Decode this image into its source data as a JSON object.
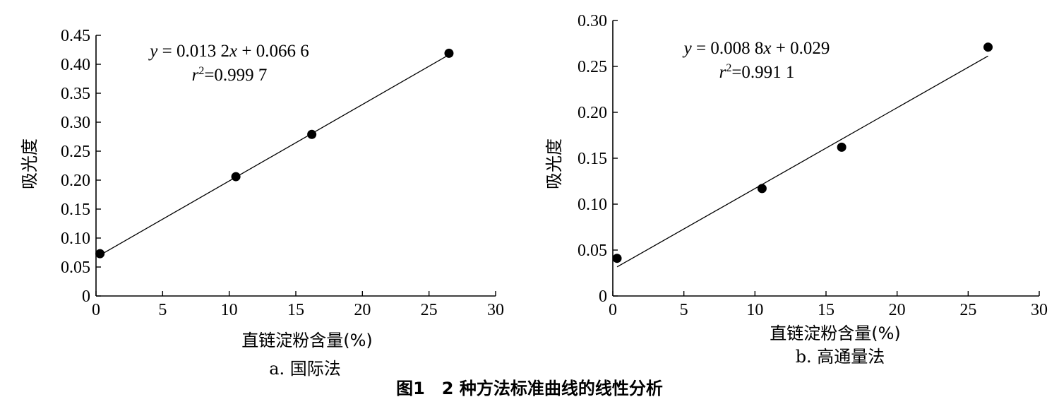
{
  "figure_caption": "图1　2 种方法标准曲线的线性分析",
  "chart_data": [
    {
      "type": "scatter",
      "subtitle": "a. 国际法",
      "xlabel": "直链淀粉含量(%)",
      "ylabel": "吸光度",
      "xlim": [
        0,
        30
      ],
      "ylim": [
        0,
        0.45
      ],
      "x_ticks": [
        "0",
        "5",
        "10",
        "15",
        "20",
        "25",
        "30"
      ],
      "y_ticks": [
        "0",
        "0.05",
        "0.10",
        "0.15",
        "0.20",
        "0.25",
        "0.30",
        "0.35",
        "0.40",
        "0.45"
      ],
      "points": [
        {
          "x": 0.3,
          "y": 0.073
        },
        {
          "x": 10.5,
          "y": 0.206
        },
        {
          "x": 16.2,
          "y": 0.279
        },
        {
          "x": 26.5,
          "y": 0.419
        }
      ],
      "fit": {
        "slope": 0.0132,
        "intercept": 0.0666,
        "x_range": [
          0.3,
          26.5
        ]
      },
      "equation": {
        "lhs": "y",
        "rhs_a": " = 0.013 2",
        "var": "x",
        "rhs_b": " + 0.066 6"
      },
      "r2": {
        "sym": "r",
        "exp": "2",
        "value": "=0.999 7"
      },
      "grid": false,
      "legend": "none"
    },
    {
      "type": "scatter",
      "subtitle": "b. 高通量法",
      "xlabel": "直链淀粉含量(%)",
      "ylabel": "吸光度",
      "xlim": [
        0,
        30
      ],
      "ylim": [
        0,
        0.3
      ],
      "x_ticks": [
        "0",
        "5",
        "10",
        "15",
        "20",
        "25",
        "30"
      ],
      "y_ticks": [
        "0",
        "0.05",
        "0.10",
        "0.15",
        "0.20",
        "0.25",
        "0.30"
      ],
      "points": [
        {
          "x": 0.3,
          "y": 0.041
        },
        {
          "x": 10.5,
          "y": 0.117
        },
        {
          "x": 16.1,
          "y": 0.162
        },
        {
          "x": 26.4,
          "y": 0.271
        }
      ],
      "fit": {
        "slope": 0.0088,
        "intercept": 0.029,
        "x_range": [
          0.3,
          26.4
        ]
      },
      "equation": {
        "lhs": "y",
        "rhs_a": " = 0.008 8",
        "var": "x",
        "rhs_b": " + 0.029"
      },
      "r2": {
        "sym": "r",
        "exp": "2",
        "value": "=0.991 1"
      },
      "grid": false,
      "legend": "none"
    }
  ]
}
